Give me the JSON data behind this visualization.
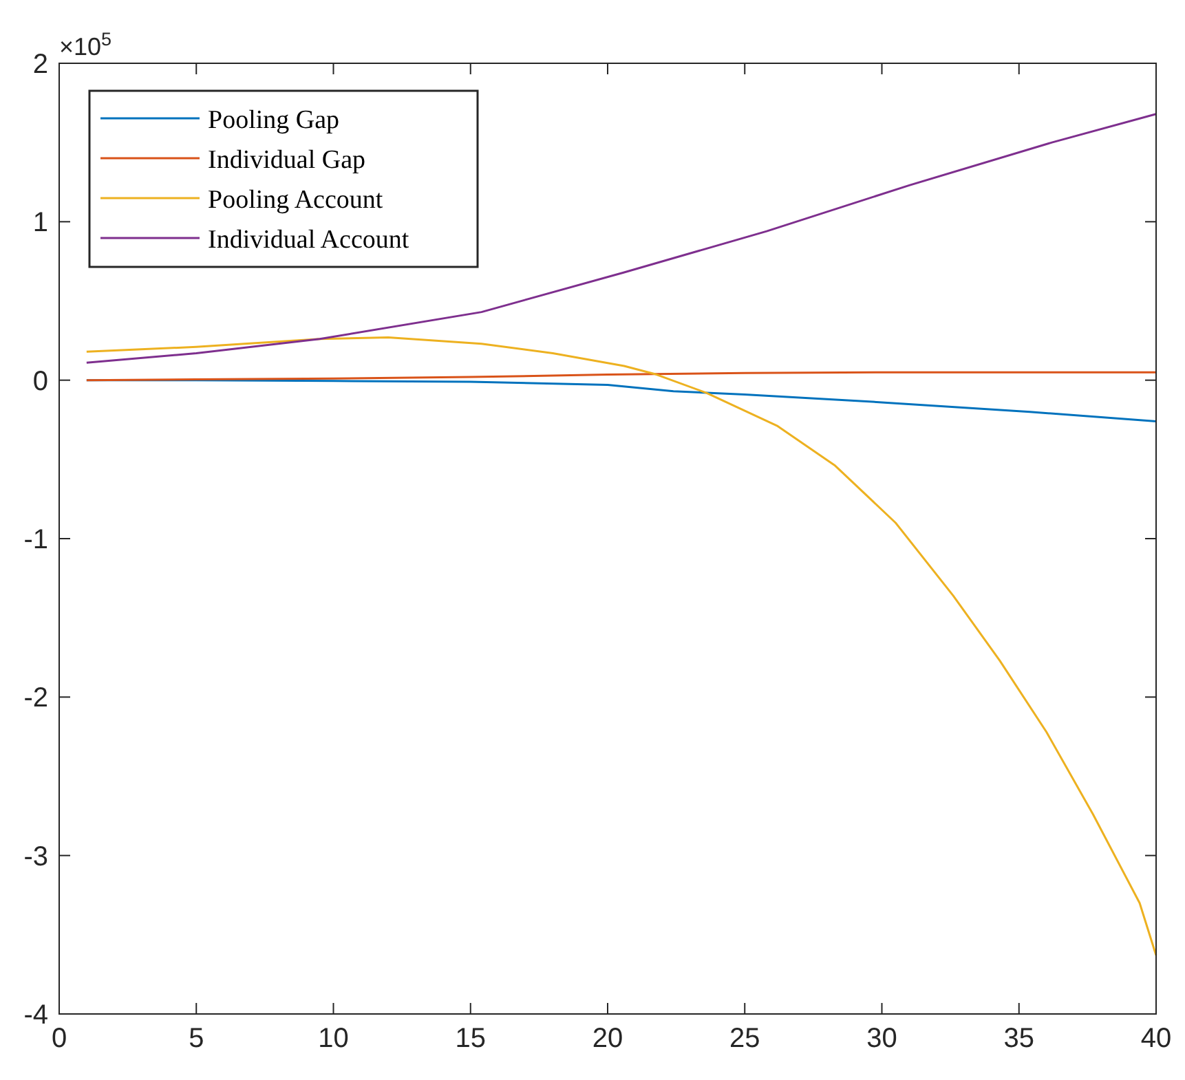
{
  "chart_data": {
    "type": "line",
    "xlim": [
      0,
      40
    ],
    "xticks": [
      0,
      5,
      10,
      15,
      20,
      25,
      30,
      35,
      40
    ],
    "ylim": [
      -4,
      2
    ],
    "yticks": [
      -4,
      -3,
      -2,
      -1,
      0,
      1,
      2
    ],
    "annotations": [
      "×10$^{5}$"
    ],
    "legend": "top left",
    "grid": false,
    "series": [
      {
        "name": "Pooling Gap",
        "color": "#0072bd",
        "x": [
          1,
          5,
          10,
          15,
          20,
          22.4,
          25,
          30,
          35.4,
          40
        ],
        "values": [
          0,
          0,
          -0.005,
          -0.01,
          -0.03,
          -0.07,
          -0.09,
          -0.14,
          -0.2,
          -0.26
        ]
      },
      {
        "name": "Individual Gap",
        "color": "#d95319",
        "x": [
          1,
          5,
          10,
          15,
          20,
          25,
          30,
          35,
          40
        ],
        "values": [
          0,
          0.005,
          0.01,
          0.02,
          0.035,
          0.045,
          0.05,
          0.05,
          0.05
        ]
      },
      {
        "name": "Pooling Account",
        "color": "#edb120",
        "x": [
          1,
          5,
          9.5,
          12,
          15.4,
          18,
          20.6,
          21.7,
          23.6,
          26.2,
          28.3,
          30.5,
          32.6,
          34.3,
          36,
          37.7,
          39.4,
          40
        ],
        "values": [
          0.18,
          0.21,
          0.26,
          0.27,
          0.23,
          0.17,
          0.09,
          0.04,
          -0.08,
          -0.29,
          -0.54,
          -0.9,
          -1.36,
          -1.77,
          -2.22,
          -2.74,
          -3.3,
          -3.63
        ]
      },
      {
        "name": "Individual Account",
        "color": "#7e2f8e",
        "x": [
          1,
          5,
          9.5,
          15.4,
          20.6,
          25.8,
          31,
          36.2,
          40
        ],
        "values": [
          0.11,
          0.17,
          0.26,
          0.43,
          0.68,
          0.94,
          1.23,
          1.5,
          1.68
        ]
      }
    ]
  }
}
